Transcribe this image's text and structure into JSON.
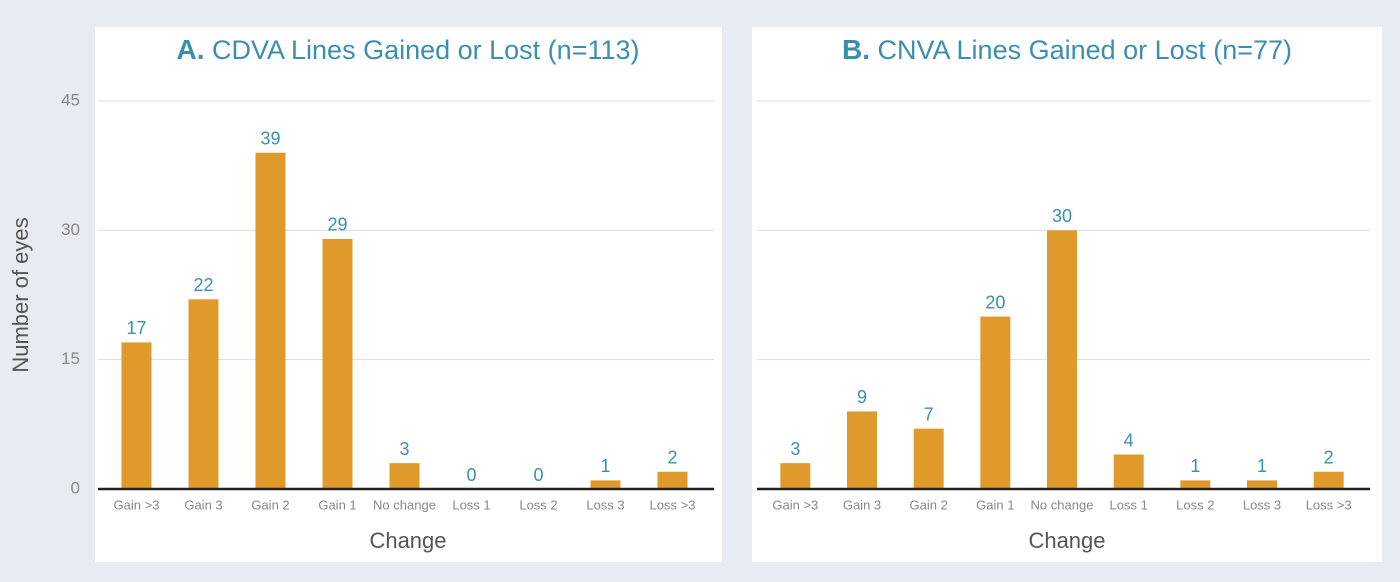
{
  "chart_data": [
    {
      "type": "bar",
      "panel": "A.",
      "title": "CDVA Lines Gained or Lost (n=113)",
      "xlabel": "Change",
      "ylabel": "Number of eyes",
      "categories": [
        "Gain >3",
        "Gain 3",
        "Gain 2",
        "Gain 1",
        "No change",
        "Loss 1",
        "Loss 2",
        "Loss 3",
        "Loss >3"
      ],
      "values": [
        17,
        22,
        39,
        29,
        3,
        0,
        0,
        1,
        2
      ],
      "color": "#e09a2b",
      "ylim": [
        0,
        45
      ],
      "yticks": [
        0,
        15,
        30,
        45
      ],
      "grid": true,
      "ytick_labels": true
    },
    {
      "type": "bar",
      "panel": "B.",
      "title": "CNVA Lines Gained or Lost (n=77)",
      "xlabel": "Change",
      "categories": [
        "Gain >3",
        "Gain 3",
        "Gain 2",
        "Gain 1",
        "No change",
        "Loss 1",
        "Loss 2",
        "Loss 3",
        "Loss >3"
      ],
      "values": [
        3,
        9,
        7,
        20,
        30,
        4,
        1,
        1,
        2
      ],
      "color": "#e09a2b",
      "ylim": [
        0,
        45
      ],
      "yticks": [
        0,
        15,
        30,
        45
      ],
      "grid": true,
      "ytick_labels": false
    }
  ]
}
